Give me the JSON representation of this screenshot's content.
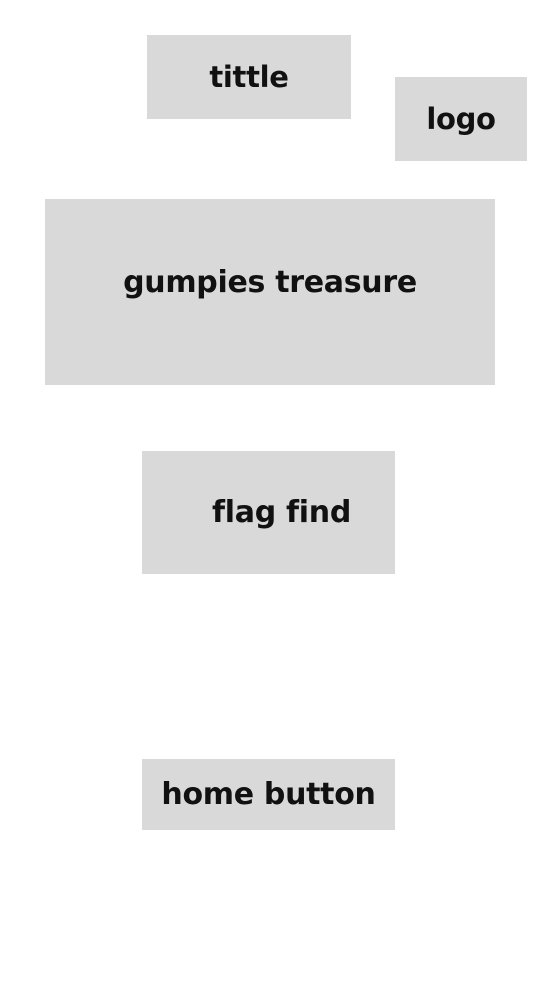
{
  "header": {
    "title_label": "tittle",
    "logo_label": "logo"
  },
  "main": {
    "hero_label": "gumpies treasure",
    "feature_label": "flag find"
  },
  "footer": {
    "home_button_label": "home button"
  },
  "colors": {
    "background": "#ffffff",
    "placeholder_box": "#d9d9d9",
    "text": "#111111"
  }
}
